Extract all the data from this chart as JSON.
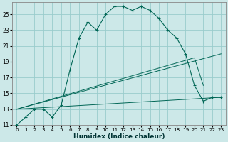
{
  "xlabel": "Humidex (Indice chaleur)",
  "bg_color": "#cce8e8",
  "grid_color": "#99cccc",
  "line_color": "#006655",
  "xlim": [
    -0.5,
    23.5
  ],
  "ylim": [
    11,
    26.5
  ],
  "xticks": [
    0,
    1,
    2,
    3,
    4,
    5,
    6,
    7,
    8,
    9,
    10,
    11,
    12,
    13,
    14,
    15,
    16,
    17,
    18,
    19,
    20,
    21,
    22,
    23
  ],
  "yticks": [
    11,
    13,
    15,
    17,
    19,
    21,
    23,
    25
  ],
  "curve1_x": [
    0,
    1,
    2,
    3,
    4,
    5,
    6,
    7,
    8,
    9,
    10,
    11,
    12,
    13,
    14,
    15,
    16,
    17,
    18,
    19,
    20,
    21,
    22,
    23
  ],
  "curve1_y": [
    11,
    12,
    13,
    13,
    12,
    13.5,
    18,
    22,
    24,
    23,
    25,
    26,
    26,
    25.5,
    26,
    25.5,
    24.5,
    23,
    22,
    20,
    16,
    14,
    14.5,
    14.5
  ],
  "line2_x": [
    0,
    20,
    21
  ],
  "line2_y": [
    13,
    19.5,
    16
  ],
  "line3_x": [
    0,
    23
  ],
  "line3_y": [
    13,
    20
  ],
  "line4_x": [
    0,
    23
  ],
  "line4_y": [
    13,
    14.5
  ]
}
